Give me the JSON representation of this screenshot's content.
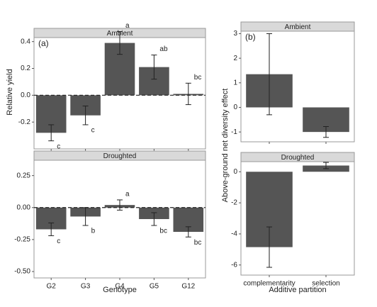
{
  "chart_data": [
    {
      "type": "bar",
      "label": "(a)",
      "title": "Ambient",
      "ylabel": "Relative yield",
      "categories": [
        null,
        null,
        null,
        null,
        null
      ],
      "values": [
        -0.28,
        -0.15,
        0.39,
        0.21,
        0.01
      ],
      "errors": [
        0.06,
        0.07,
        0.085,
        0.09,
        0.08
      ],
      "letters": [
        "c",
        "c",
        "a",
        "ab",
        "bc"
      ],
      "color": "#555555",
      "hline": 0,
      "ylim": [
        -0.4,
        0.43
      ],
      "yticks": [
        0.4,
        0.2,
        {
          "value": 0,
          "label": "0.0"
        },
        -0.2
      ]
    },
    {
      "type": "bar",
      "title": "Droughted",
      "xlabel": "Genotype",
      "categories": [
        "G2",
        "G3",
        "G4",
        "G5",
        "G12"
      ],
      "values": [
        -0.17,
        -0.07,
        0.02,
        -0.09,
        -0.19
      ],
      "errors": [
        0.05,
        0.07,
        0.04,
        0.05,
        0.04
      ],
      "letters": [
        "c",
        "b",
        "a",
        "bc",
        "bc"
      ],
      "color": "#555555",
      "hline": 0,
      "ylim": [
        -0.55,
        0.37
      ],
      "yticks": [
        0.25,
        {
          "value": 0,
          "label": "0.00"
        },
        -0.25,
        {
          "value": -0.5,
          "label": "-0.50"
        }
      ]
    },
    {
      "type": "bar",
      "label": "(b)",
      "title": "Ambient",
      "ylabel": "Above-ground net diversity effect",
      "categories": [
        null,
        null
      ],
      "values": [
        1.35,
        -1.0
      ],
      "errors": [
        1.65,
        0.22
      ],
      "color": "#555555",
      "ylim": [
        -1.4,
        3.1
      ],
      "yticks": [
        3,
        2,
        1,
        0,
        -1
      ]
    },
    {
      "type": "bar",
      "title": "Droughted",
      "xlabel": "Additive partition",
      "categories": [
        "complementarity",
        "selection"
      ],
      "values": [
        -4.85,
        0.4
      ],
      "errors": [
        1.3,
        0.2
      ],
      "color": "#555555",
      "ylim": [
        -6.65,
        0.65
      ],
      "yticks": [
        0,
        -2,
        -4,
        -6
      ]
    }
  ]
}
